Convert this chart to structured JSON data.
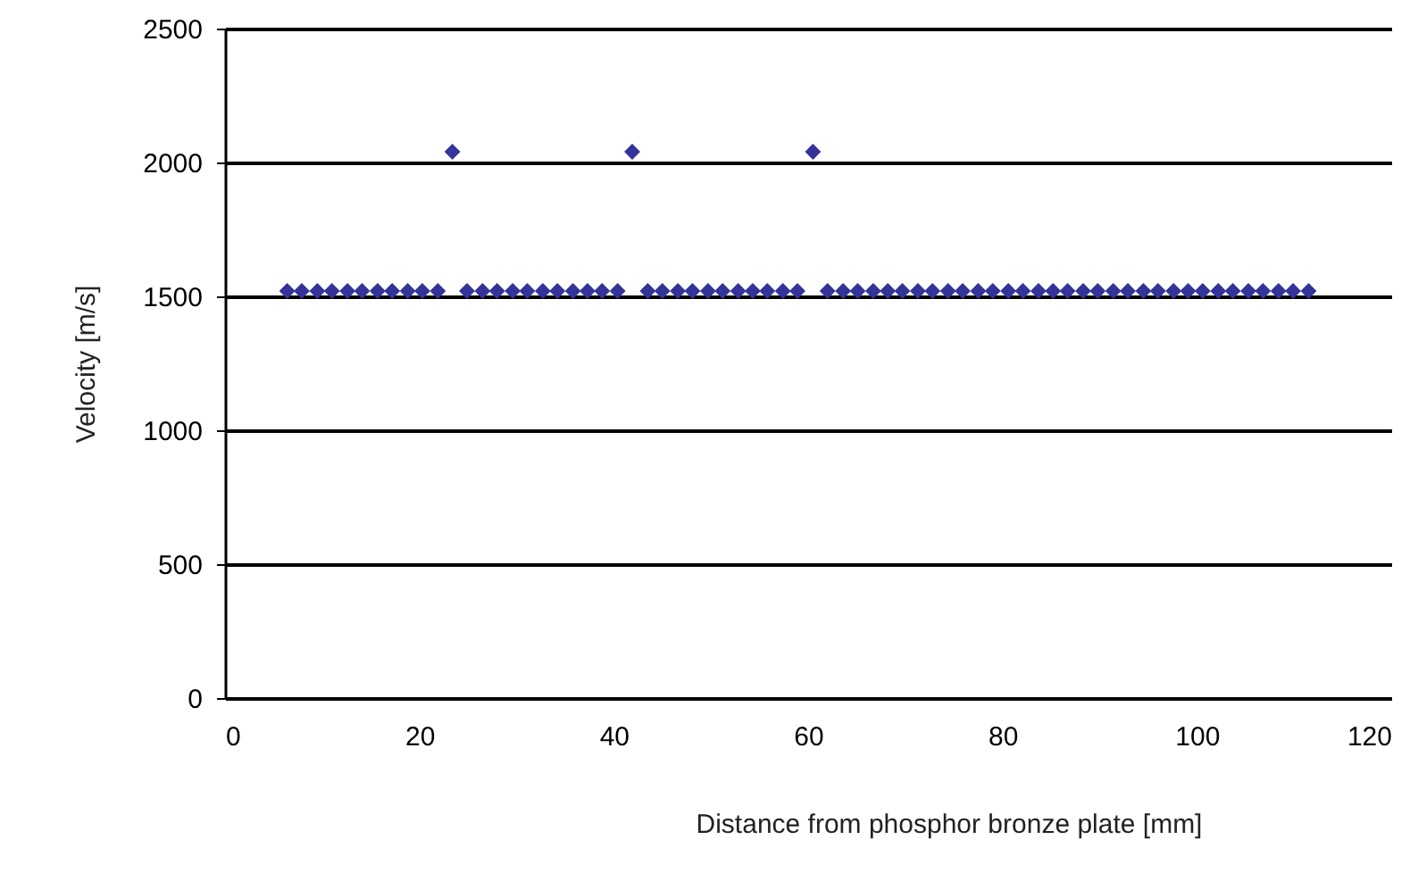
{
  "chart_data": {
    "type": "scatter",
    "xlabel": "Distance from phosphor bronze plate [mm]",
    "ylabel": "Velocity [m/s]",
    "x": [
      6.4,
      7.9,
      9.5,
      11.0,
      12.6,
      14.1,
      15.7,
      17.2,
      18.8,
      20.3,
      21.9,
      23.4,
      24.9,
      26.5,
      28.0,
      29.6,
      31.1,
      32.7,
      34.2,
      35.8,
      37.3,
      38.8,
      40.4,
      41.9,
      43.5,
      45.0,
      46.6,
      48.1,
      49.7,
      51.2,
      52.8,
      54.3,
      55.8,
      57.4,
      58.9,
      60.5,
      62.0,
      63.6,
      65.1,
      66.7,
      68.2,
      69.7,
      71.3,
      72.8,
      74.4,
      75.9,
      77.5,
      79.0,
      80.6,
      82.1,
      83.7,
      85.2,
      86.7,
      88.3,
      89.8,
      91.4,
      92.9,
      94.5,
      96.0,
      97.6,
      99.1,
      100.6,
      102.2,
      103.7,
      105.3,
      106.8,
      108.4,
      109.9,
      111.5
    ],
    "series": [
      {
        "color": "#333399",
        "values": [
          1520,
          1520,
          1520,
          1520,
          1520,
          1520,
          1520,
          1520,
          1520,
          1520,
          1520,
          2040,
          1520,
          1520,
          1520,
          1520,
          1520,
          1520,
          1520,
          1520,
          1520,
          1520,
          1520,
          2040,
          1520,
          1520,
          1520,
          1520,
          1520,
          1520,
          1520,
          1520,
          1520,
          1520,
          1520,
          2040,
          1520,
          1520,
          1520,
          1520,
          1520,
          1520,
          1520,
          1520,
          1520,
          1520,
          1520,
          1520,
          1520,
          1520,
          1520,
          1520,
          1520,
          1520,
          1520,
          1520,
          1520,
          1520,
          1520,
          1520,
          1520,
          1520,
          1520,
          1520,
          1520,
          1520,
          1520,
          1520,
          1520
        ]
      }
    ],
    "xlim": [
      0,
      120
    ],
    "xticks": [
      0,
      20,
      40,
      60,
      80,
      100,
      120
    ],
    "ylim": [
      0,
      2500
    ],
    "yticks": [
      0,
      500,
      1000,
      1500,
      2000,
      2500
    ],
    "grid": "y",
    "marker": "diamond"
  }
}
